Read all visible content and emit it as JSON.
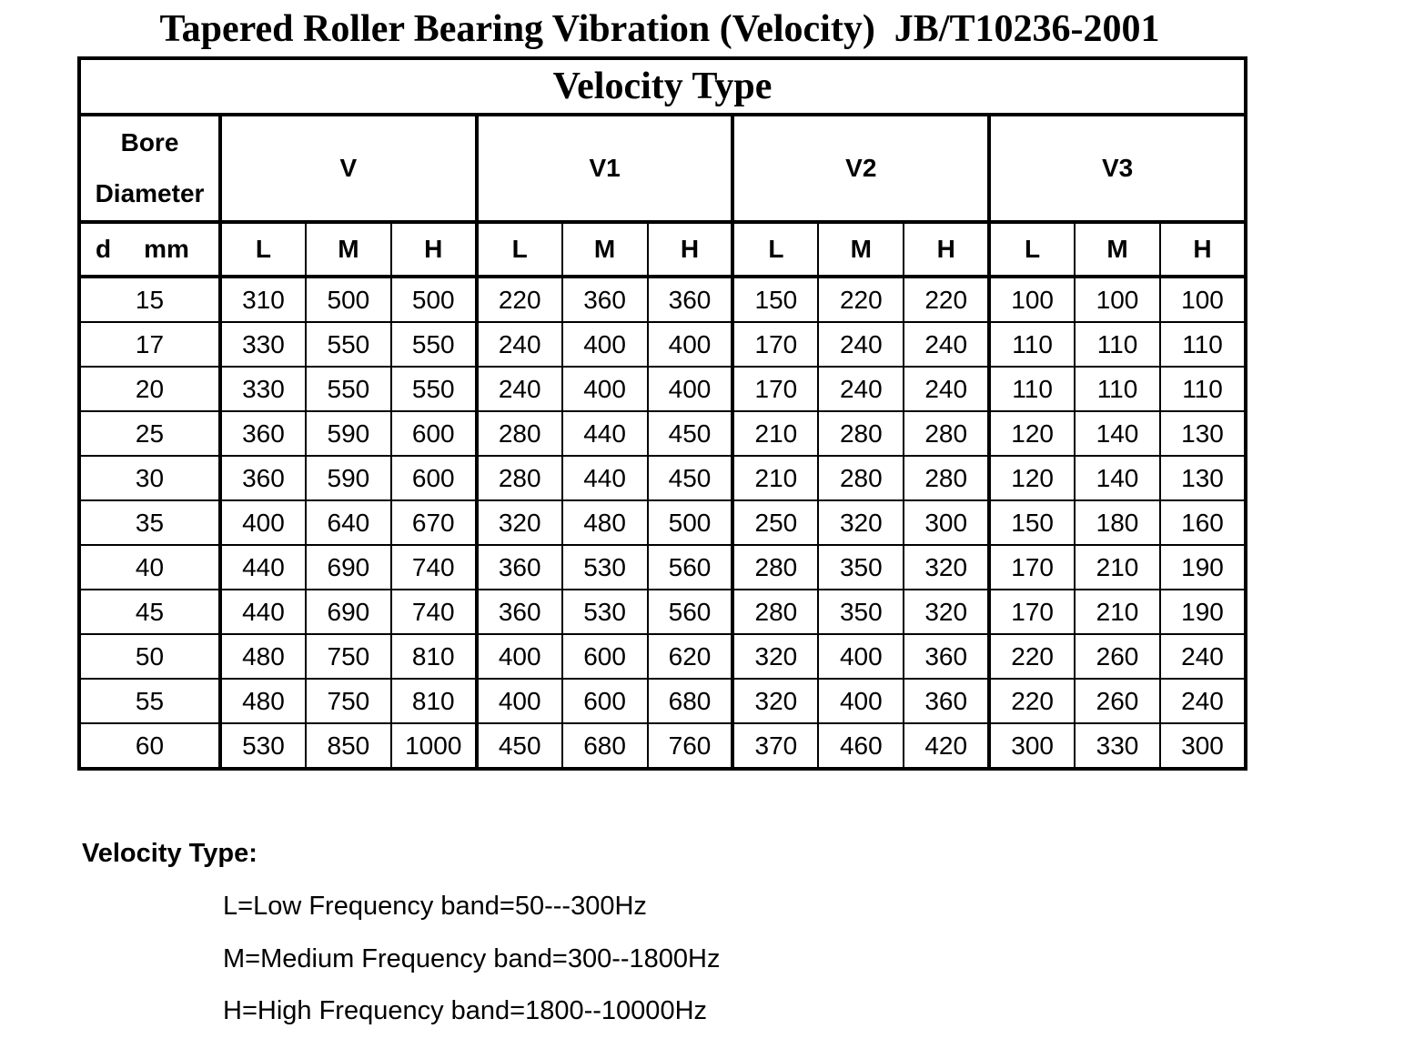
{
  "title": "Tapered Roller Bearing Vibration (Velocity)  JB/T10236-2001",
  "table": {
    "caption": "Velocity Type",
    "bore_header": [
      "Bore",
      "Diameter"
    ],
    "unit_header": [
      "d",
      "mm"
    ],
    "groups": [
      "V",
      "V1",
      "V2",
      "V3"
    ],
    "bands": [
      "L",
      "M",
      "H"
    ],
    "rows": [
      [
        15,
        310,
        500,
        500,
        220,
        360,
        360,
        150,
        220,
        220,
        100,
        100,
        100
      ],
      [
        17,
        330,
        550,
        550,
        240,
        400,
        400,
        170,
        240,
        240,
        110,
        110,
        110
      ],
      [
        20,
        330,
        550,
        550,
        240,
        400,
        400,
        170,
        240,
        240,
        110,
        110,
        110
      ],
      [
        25,
        360,
        590,
        600,
        280,
        440,
        450,
        210,
        280,
        280,
        120,
        140,
        130
      ],
      [
        30,
        360,
        590,
        600,
        280,
        440,
        450,
        210,
        280,
        280,
        120,
        140,
        130
      ],
      [
        35,
        400,
        640,
        670,
        320,
        480,
        500,
        250,
        320,
        300,
        150,
        180,
        160
      ],
      [
        40,
        440,
        690,
        740,
        360,
        530,
        560,
        280,
        350,
        320,
        170,
        210,
        190
      ],
      [
        45,
        440,
        690,
        740,
        360,
        530,
        560,
        280,
        350,
        320,
        170,
        210,
        190
      ],
      [
        50,
        480,
        750,
        810,
        400,
        600,
        620,
        320,
        400,
        360,
        220,
        260,
        240
      ],
      [
        55,
        480,
        750,
        810,
        400,
        600,
        680,
        320,
        400,
        360,
        220,
        260,
        240
      ],
      [
        60,
        530,
        850,
        1000,
        450,
        680,
        760,
        370,
        460,
        420,
        300,
        330,
        300
      ]
    ]
  },
  "legend": {
    "title": "Velocity Type:",
    "items": [
      "L=Low Frequency band=50---300Hz",
      "M=Medium Frequency band=300--1800Hz",
      "H=High Frequency band=1800--10000Hz"
    ]
  }
}
